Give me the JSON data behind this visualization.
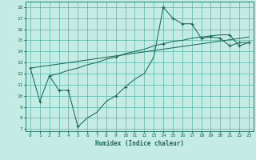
{
  "xlabel": "Humidex (Indice chaleur)",
  "bg_color": "#c5ebe5",
  "grid_color": "#5ab5a8",
  "line_color": "#1a6b5a",
  "xlim": [
    -0.5,
    23.5
  ],
  "ylim": [
    6.8,
    18.5
  ],
  "xticks": [
    0,
    1,
    2,
    3,
    4,
    5,
    6,
    7,
    8,
    9,
    10,
    11,
    12,
    13,
    14,
    15,
    16,
    17,
    18,
    19,
    20,
    21,
    22,
    23
  ],
  "yticks": [
    7,
    8,
    9,
    10,
    11,
    12,
    13,
    14,
    15,
    16,
    17,
    18
  ],
  "curve1_x": [
    0,
    1,
    2,
    3,
    4,
    5,
    6,
    7,
    8,
    9,
    10,
    11,
    12,
    13,
    14,
    15,
    16,
    17,
    18,
    19,
    20,
    21,
    22,
    23
  ],
  "curve1_y": [
    12.5,
    9.5,
    11.8,
    10.5,
    10.5,
    7.2,
    8.0,
    8.5,
    9.5,
    10.0,
    10.8,
    11.5,
    12.0,
    13.5,
    18.0,
    17.0,
    16.5,
    16.5,
    15.2,
    15.3,
    15.2,
    14.5,
    14.8,
    14.8
  ],
  "curve1_markers_x": [
    0,
    1,
    3,
    4,
    5,
    9,
    10,
    14,
    15,
    16,
    17,
    18,
    19,
    20,
    21,
    22,
    23
  ],
  "curve1_markers_y": [
    12.5,
    9.5,
    10.5,
    10.5,
    7.2,
    10.0,
    10.8,
    18.0,
    17.0,
    16.5,
    16.5,
    15.2,
    15.3,
    15.2,
    14.5,
    14.8,
    14.8
  ],
  "curve2_x": [
    0,
    23
  ],
  "curve2_y": [
    12.5,
    15.3
  ],
  "curve3_x": [
    2,
    3,
    4,
    5,
    6,
    7,
    8,
    9,
    10,
    11,
    12,
    13,
    14,
    15,
    16,
    17,
    18,
    19,
    20,
    21,
    22,
    23
  ],
  "curve3_y": [
    11.8,
    12.0,
    12.3,
    12.5,
    12.8,
    13.0,
    13.3,
    13.5,
    13.8,
    14.0,
    14.2,
    14.5,
    14.7,
    14.9,
    15.0,
    15.2,
    15.3,
    15.4,
    15.5,
    15.5,
    14.5,
    14.8
  ],
  "curve3_markers_x": [
    2,
    9,
    14,
    19,
    21,
    22,
    23
  ],
  "curve3_markers_y": [
    11.8,
    13.5,
    14.7,
    15.4,
    15.5,
    14.5,
    14.8
  ]
}
